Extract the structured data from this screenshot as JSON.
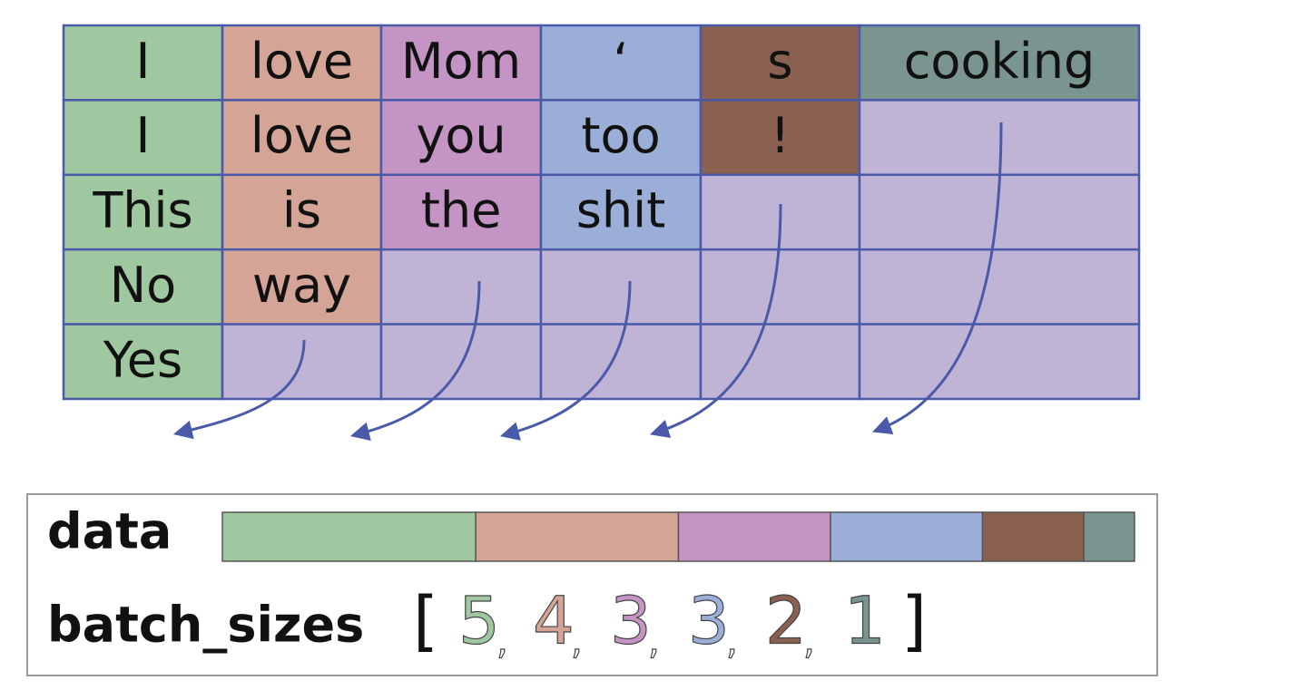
{
  "table": {
    "rows": [
      [
        "I",
        "love",
        "Mom",
        "‘",
        "s",
        "cooking"
      ],
      [
        "I",
        "love",
        "you",
        "too",
        "!"
      ],
      [
        "This",
        "is",
        "the",
        "shit"
      ],
      [
        "No",
        "way"
      ],
      [
        "Yes"
      ]
    ],
    "column_colors": [
      "#a0c8a0",
      "#d4a596",
      "#c495c4",
      "#9aaed8",
      "#8a6050",
      "#7a9490"
    ],
    "padding_color": "#c0b4d6"
  },
  "legend": {
    "data_label": "data",
    "batch_sizes_label": "batch_sizes",
    "open_bracket": "[",
    "close_bracket": "]",
    "separator": ",",
    "batch_sizes": [
      5,
      4,
      3,
      3,
      2,
      1
    ]
  }
}
